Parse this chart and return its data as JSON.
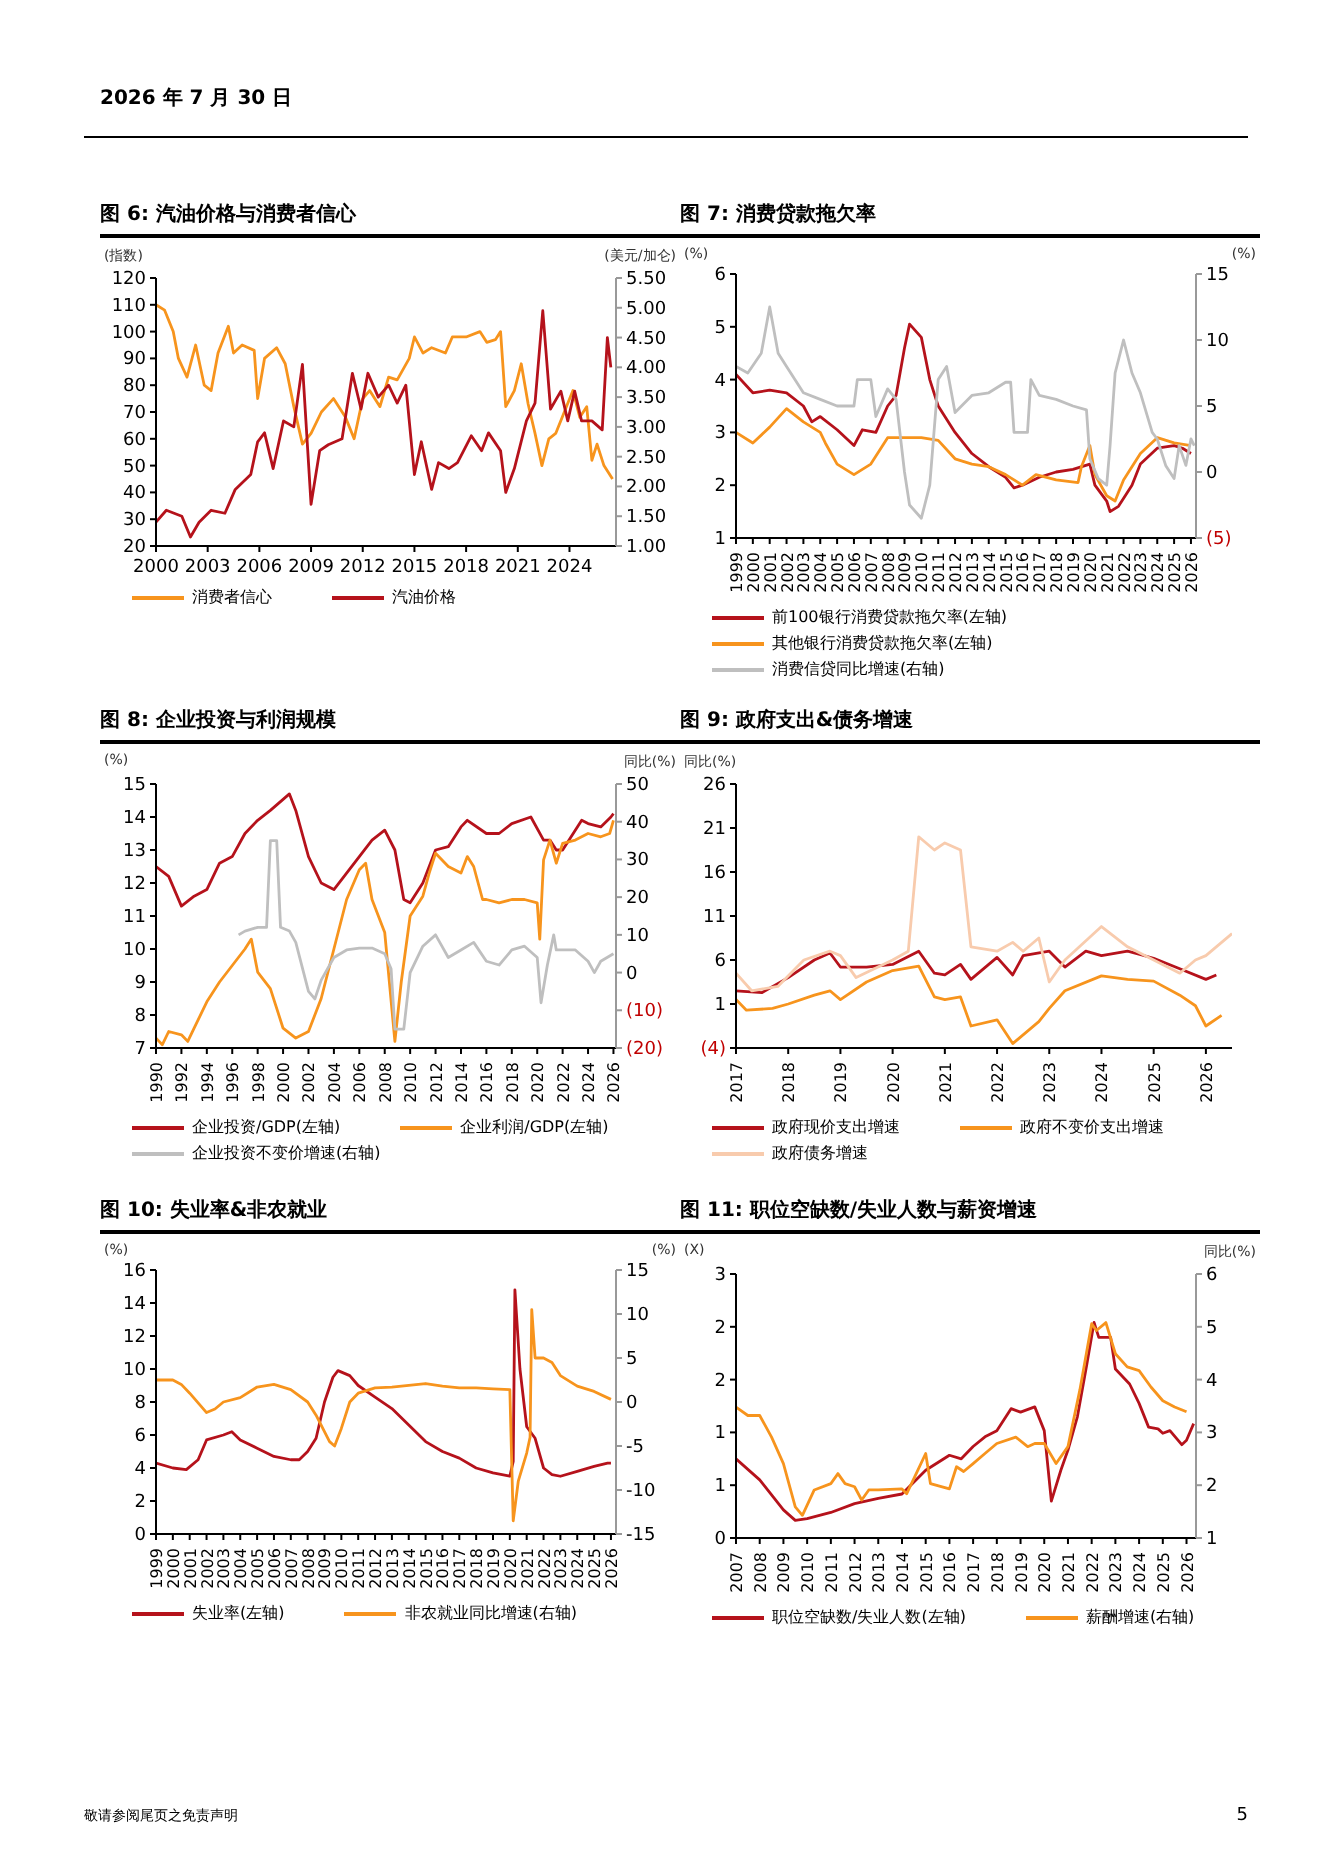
{
  "chart_data": [
    {
      "type": "line",
      "title": "图 6: 汽油价格与消费者信心",
      "ylabel": "(指数)",
      "y2label": "(美元/加仑)",
      "annotations": [
        "2026 年 7 月 30 日"
      ],
      "legend": "bottom",
      "xlim": [
        2000,
        2026.7
      ],
      "xticks": [
        2000,
        2003,
        2006,
        2009,
        2012,
        2015,
        2018,
        2021,
        2024
      ],
      "ylim": [
        20,
        120
      ],
      "yticks": [
        20,
        30,
        40,
        50,
        60,
        70,
        80,
        90,
        100,
        110,
        120
      ],
      "y2lim": [
        1,
        5.5
      ],
      "y2ticks": [
        {
          "value": 1,
          "label": "1.00"
        },
        {
          "value": 1.5,
          "label": "1.50"
        },
        {
          "value": 2,
          "label": "2.00"
        },
        {
          "value": 2.5,
          "label": "2.50"
        },
        {
          "value": 3,
          "label": "3.00"
        },
        {
          "value": 3.5,
          "label": "3.50"
        },
        {
          "value": 4,
          "label": "4.00"
        },
        {
          "value": 4.5,
          "label": "4.50"
        },
        {
          "value": 5,
          "label": "5.00"
        },
        {
          "value": 5.5,
          "label": "5.50"
        }
      ],
      "series": [
        {
          "name": "消费者信心",
          "color": "#f7941d",
          "x": [
            2000,
            2000.5,
            2001,
            2001.3,
            2001.8,
            2002.3,
            2002.8,
            2003.2,
            2003.6,
            2004.2,
            2004.5,
            2005,
            2005.7,
            2005.9,
            2006.3,
            2007,
            2007.5,
            2008,
            2008.5,
            2009,
            2009.6,
            2010.3,
            2011,
            2011.5,
            2012,
            2012.4,
            2013,
            2013.5,
            2014,
            2014.7,
            2015,
            2015.5,
            2016,
            2016.8,
            2017.2,
            2018,
            2018.8,
            2019.2,
            2019.7,
            2020,
            2020.3,
            2020.8,
            2021.2,
            2021.6,
            2022,
            2022.4,
            2022.8,
            2023.2,
            2023.7,
            2024.2,
            2024.6,
            2025,
            2025.3,
            2025.6,
            2026,
            2026.5
          ],
          "values": [
            110,
            108,
            100,
            90,
            83,
            95,
            80,
            78,
            92,
            102,
            92,
            95,
            93,
            75,
            90,
            94,
            88,
            72,
            58,
            62,
            70,
            75,
            68,
            60,
            75,
            78,
            72,
            83,
            82,
            90,
            98,
            92,
            94,
            92,
            98,
            98,
            100,
            96,
            97,
            100,
            72,
            78,
            88,
            73,
            62,
            50,
            60,
            62,
            70,
            78,
            68,
            72,
            52,
            58,
            50,
            45
          ]
        },
        {
          "name": "汽油价格",
          "color": "#b5121b",
          "axis": "y2",
          "x": [
            2000,
            2000.6,
            2001.5,
            2002,
            2002.5,
            2003.2,
            2004,
            2004.6,
            2005.5,
            2005.9,
            2006.3,
            2006.8,
            2007.4,
            2008,
            2008.5,
            2009,
            2009.5,
            2010,
            2010.8,
            2011.4,
            2011.9,
            2012.3,
            2012.9,
            2013.5,
            2014,
            2014.5,
            2015,
            2015.4,
            2016,
            2016.4,
            2017,
            2017.5,
            2018.3,
            2018.9,
            2019.3,
            2020,
            2020.3,
            2020.8,
            2021.5,
            2022,
            2022.45,
            2022.9,
            2023.5,
            2023.9,
            2024.3,
            2024.7,
            2025.3,
            2025.9,
            2026.2,
            2026.4
          ],
          "values": [
            1.4,
            1.6,
            1.5,
            1.15,
            1.4,
            1.6,
            1.55,
            1.95,
            2.2,
            2.75,
            2.9,
            2.3,
            3.1,
            3.0,
            4.05,
            1.7,
            2.6,
            2.7,
            2.8,
            3.9,
            3.3,
            3.9,
            3.5,
            3.7,
            3.4,
            3.7,
            2.2,
            2.75,
            1.95,
            2.4,
            2.3,
            2.4,
            2.85,
            2.6,
            2.9,
            2.6,
            1.9,
            2.3,
            3.1,
            3.4,
            4.95,
            3.3,
            3.6,
            3.1,
            3.6,
            3.1,
            3.1,
            2.95,
            4.5,
            4.0
          ]
        }
      ]
    },
    {
      "type": "line",
      "title": "图 7: 消费贷款拖欠率",
      "ylabel": "(%)",
      "y2label": "(%)",
      "legend": "bottom",
      "xlim": [
        1999,
        2026.3
      ],
      "xticks": [
        1999,
        2000,
        2001,
        2002,
        2003,
        2004,
        2005,
        2006,
        2007,
        2008,
        2009,
        2010,
        2011,
        2012,
        2013,
        2014,
        2015,
        2016,
        2017,
        2018,
        2019,
        2020,
        2021,
        2022,
        2023,
        2024,
        2025,
        2026
      ],
      "ylim": [
        1,
        6
      ],
      "yticks": [
        1,
        2,
        3,
        4,
        5,
        6
      ],
      "y2lim": [
        -5,
        15
      ],
      "y2ticks": [
        {
          "value": -5,
          "label": "(5)"
        },
        0,
        5,
        10,
        15
      ],
      "series": [
        {
          "name": "前100银行消费贷款拖欠率(左轴)",
          "color": "#b5121b",
          "x": [
            1999,
            2000,
            2001,
            2002,
            2003,
            2003.5,
            2004,
            2005,
            2006,
            2006.5,
            2007.3,
            2008,
            2008.5,
            2009,
            2009.3,
            2010,
            2010.5,
            2011,
            2012,
            2013,
            2014,
            2015,
            2015.5,
            2016,
            2017,
            2018,
            2019,
            2020,
            2020.3,
            2021,
            2021.2,
            2021.7,
            2022.5,
            2023,
            2024,
            2025,
            2025.5,
            2026
          ],
          "values": [
            4.1,
            3.75,
            3.8,
            3.75,
            3.5,
            3.2,
            3.3,
            3.05,
            2.75,
            3.05,
            3.0,
            3.5,
            3.7,
            4.6,
            5.05,
            4.8,
            4.0,
            3.5,
            3.0,
            2.6,
            2.35,
            2.15,
            1.95,
            2.0,
            2.15,
            2.25,
            2.3,
            2.4,
            2.0,
            1.7,
            1.5,
            1.6,
            2.0,
            2.4,
            2.7,
            2.75,
            2.7,
            2.6
          ]
        },
        {
          "name": "其他银行消费贷款拖欠率(左轴)",
          "color": "#f7941d",
          "x": [
            1999,
            2000,
            2001,
            2002,
            2003,
            2004,
            2004.3,
            2005,
            2006,
            2007,
            2008,
            2009,
            2010,
            2011,
            2012,
            2013,
            2014,
            2015,
            2016,
            2016.8,
            2018,
            2019.3,
            2019.5,
            2020,
            2020.3,
            2021,
            2021.5,
            2022,
            2023,
            2024,
            2025,
            2026
          ],
          "values": [
            3.0,
            2.8,
            3.1,
            3.45,
            3.2,
            3.0,
            2.8,
            2.4,
            2.2,
            2.4,
            2.9,
            2.9,
            2.9,
            2.85,
            2.5,
            2.4,
            2.35,
            2.2,
            2.0,
            2.2,
            2.1,
            2.05,
            2.35,
            2.75,
            2.2,
            1.8,
            1.7,
            2.1,
            2.6,
            2.9,
            2.8,
            2.75
          ]
        },
        {
          "name": "消费信贷同比增速(右轴)",
          "color": "#bfbfbf",
          "axis": "y2",
          "x": [
            1999,
            1999.7,
            2000.5,
            2001,
            2001.5,
            2002,
            2003,
            2004,
            2005,
            2006,
            2006.2,
            2007,
            2007.3,
            2008,
            2008.5,
            2009,
            2009.3,
            2010,
            2010.5,
            2011,
            2011.5,
            2012,
            2013,
            2014,
            2015,
            2015.3,
            2015.5,
            2016.3,
            2016.5,
            2017,
            2018,
            2019,
            2019.8,
            2020,
            2020.5,
            2021,
            2021.2,
            2021.5,
            2022,
            2022.5,
            2023,
            2023.7,
            2024,
            2024.5,
            2025,
            2025.3,
            2025.7,
            2026,
            2026.2
          ],
          "values": [
            8,
            7.5,
            9,
            12.5,
            9,
            8,
            6,
            5.5,
            5,
            5,
            7,
            7,
            4.2,
            6.3,
            5.5,
            0,
            -2.5,
            -3.5,
            -1,
            7,
            8,
            4.5,
            5.8,
            6,
            6.8,
            6.8,
            3,
            3,
            7,
            5.8,
            5.5,
            5,
            4.7,
            1,
            -0.5,
            -1,
            2,
            7.5,
            10,
            7.5,
            6,
            3,
            2.5,
            0.5,
            -0.5,
            2,
            0.5,
            2.5,
            2.0
          ]
        }
      ]
    },
    {
      "type": "line",
      "title": "图 8: 企业投资与利润规模",
      "ylabel": "(%)",
      "y2label": "同比(%)",
      "legend": "bottom",
      "xlim": [
        1990,
        2026.2
      ],
      "xticks": [
        1990,
        1992,
        1994,
        1996,
        1998,
        2000,
        2002,
        2004,
        2006,
        2008,
        2010,
        2012,
        2014,
        2016,
        2018,
        2020,
        2022,
        2024,
        2026
      ],
      "ylim": [
        7,
        15
      ],
      "yticks": [
        7,
        8,
        9,
        10,
        11,
        12,
        13,
        14,
        15
      ],
      "y2lim": [
        -20,
        50
      ],
      "y2ticks": [
        {
          "value": -20,
          "label": "(20)"
        },
        {
          "value": -10,
          "label": "(10)"
        },
        0,
        10,
        20,
        30,
        40,
        50
      ],
      "series": [
        {
          "name": "企业投资/GDP(左轴)",
          "color": "#b5121b",
          "x": [
            1990,
            1991,
            1992,
            1993,
            1994,
            1995,
            1996,
            1997,
            1998,
            1999,
            2000.5,
            2001,
            2002,
            2003,
            2004,
            2005,
            2006,
            2007,
            2008,
            2008.8,
            2009.5,
            2010,
            2011,
            2012,
            2013,
            2014,
            2014.5,
            2016,
            2017,
            2018,
            2019.5,
            2020.5,
            2021,
            2021.5,
            2022,
            2023.5,
            2024,
            2025,
            2025.8,
            2026
          ],
          "values": [
            12.5,
            12.2,
            11.3,
            11.6,
            11.8,
            12.6,
            12.8,
            13.5,
            13.9,
            14.2,
            14.7,
            14.2,
            12.8,
            12.0,
            11.8,
            12.3,
            12.8,
            13.3,
            13.6,
            13.0,
            11.5,
            11.4,
            12.0,
            13.0,
            13.1,
            13.7,
            13.9,
            13.5,
            13.5,
            13.8,
            14.0,
            13.3,
            13.3,
            13.0,
            13.0,
            13.9,
            13.8,
            13.7,
            14.0,
            14.1
          ]
        },
        {
          "name": "企业利润/GDP(左轴)",
          "color": "#f7941d",
          "x": [
            1990,
            1990.5,
            1991,
            1992,
            1992.5,
            1993,
            1994,
            1995,
            1996,
            1997,
            1997.5,
            1998,
            1999,
            2000,
            2001,
            2002,
            2003,
            2004,
            2005,
            2006,
            2006.5,
            2007,
            2008,
            2008.8,
            2009.3,
            2010,
            2011,
            2011.5,
            2012,
            2013,
            2014,
            2014.5,
            2015,
            2015.7,
            2016,
            2017,
            2018,
            2019,
            2020,
            2020.2,
            2020.5,
            2021,
            2021.5,
            2022,
            2023,
            2024,
            2025,
            2025.7,
            2026
          ],
          "values": [
            7.3,
            7.1,
            7.5,
            7.4,
            7.2,
            7.6,
            8.4,
            9.0,
            9.5,
            10.0,
            10.3,
            9.3,
            8.8,
            7.6,
            7.3,
            7.5,
            8.5,
            10.0,
            11.5,
            12.4,
            12.6,
            11.5,
            10.5,
            7.2,
            9.0,
            11.0,
            11.6,
            12.3,
            12.9,
            12.5,
            12.3,
            12.8,
            12.5,
            11.5,
            11.5,
            11.4,
            11.5,
            11.5,
            11.4,
            10.3,
            12.7,
            13.3,
            12.6,
            13.2,
            13.3,
            13.5,
            13.4,
            13.5,
            13.9
          ]
        },
        {
          "name": "企业投资不变价增速(右轴)",
          "color": "#bfbfbf",
          "axis": "y2",
          "x": [
            1996.5,
            1997,
            1998,
            1998.7,
            1999,
            1999.5,
            1999.8,
            2000.5,
            2001,
            2002,
            2002.5,
            2003,
            2004,
            2005,
            2006,
            2007,
            2008,
            2008.5,
            2008.8,
            2009.5,
            2010,
            2011,
            2012,
            2012.5,
            2013,
            2014,
            2015,
            2016,
            2017,
            2018,
            2019,
            2020,
            2020.3,
            2020.8,
            2021.3,
            2021.5,
            2022,
            2023,
            2024,
            2024.5,
            2025,
            2026
          ],
          "values": [
            10,
            11,
            12,
            12,
            35,
            35,
            12,
            11,
            8,
            -5,
            -7,
            -2,
            4,
            6,
            6.5,
            6.5,
            5,
            1,
            -15,
            -15,
            0,
            7,
            10,
            7,
            4,
            6,
            8,
            3,
            2,
            6,
            7,
            4,
            -8,
            2,
            10,
            6,
            6,
            6,
            3,
            0,
            3,
            5
          ]
        }
      ]
    },
    {
      "type": "line",
      "title": "图 9: 政府支出&债务增速",
      "ylabel": "同比(%)",
      "legend": "bottom",
      "xlim": [
        2017,
        2026.5
      ],
      "xticks": [
        2017,
        2018,
        2019,
        2020,
        2021,
        2022,
        2023,
        2024,
        2025,
        2026
      ],
      "ylim": [
        -4,
        26
      ],
      "yticks": [
        {
          "value": -4,
          "label": "(4)"
        },
        1,
        6,
        11,
        16,
        21,
        26
      ],
      "series": [
        {
          "name": "政府现价支出增速",
          "color": "#b5121b",
          "x": [
            2017,
            2017.5,
            2018,
            2018.5,
            2018.8,
            2019,
            2019.5,
            2020,
            2020.5,
            2020.8,
            2021,
            2021.3,
            2021.5,
            2022,
            2022.3,
            2022.5,
            2023,
            2023.3,
            2023.7,
            2024,
            2024.5,
            2025,
            2025.5,
            2026,
            2026.2
          ],
          "values": [
            2.5,
            2.3,
            4,
            6,
            6.8,
            5.2,
            5.2,
            5.5,
            7,
            4.5,
            4.3,
            5.5,
            3.8,
            6.3,
            4.3,
            6.5,
            7,
            5.2,
            7,
            6.5,
            7,
            6.2,
            5,
            3.8,
            4.3
          ]
        },
        {
          "name": "政府不变价支出增速",
          "color": "#f7941d",
          "x": [
            2017,
            2017.2,
            2017.7,
            2018,
            2018.5,
            2018.8,
            2019,
            2019.5,
            2020,
            2020.5,
            2020.8,
            2021,
            2021.3,
            2021.5,
            2022,
            2022.3,
            2022.8,
            2023,
            2023.3,
            2024,
            2024.5,
            2025,
            2025.5,
            2025.8,
            2026,
            2026.3
          ],
          "values": [
            1.5,
            0.3,
            0.5,
            1,
            2,
            2.5,
            1.5,
            3.5,
            4.8,
            5.3,
            1.8,
            1.5,
            1.8,
            -1.5,
            -0.8,
            -3.5,
            -1,
            0.5,
            2.5,
            4.2,
            3.8,
            3.6,
            2.0,
            0.8,
            -1.5,
            -0.3
          ]
        },
        {
          "name": "政府债务增速",
          "color": "#f8cbad",
          "x": [
            2017,
            2017.3,
            2017.8,
            2018.3,
            2018.8,
            2019,
            2019.3,
            2020,
            2020.3,
            2020.5,
            2020.8,
            2021,
            2021.3,
            2021.5,
            2022,
            2022.3,
            2022.5,
            2022.8,
            2023,
            2023.3,
            2024,
            2024.5,
            2025,
            2025.5,
            2025.8,
            2026,
            2026.5
          ],
          "values": [
            4.5,
            2.5,
            3,
            6,
            7,
            6.5,
            4,
            6,
            7,
            20,
            18.5,
            19.3,
            18.5,
            7.5,
            7,
            8,
            7,
            8.5,
            3.5,
            6,
            9.8,
            7.5,
            6,
            4.5,
            6,
            6.5,
            9
          ]
        }
      ]
    },
    {
      "type": "line",
      "title": "图 10: 失业率&非农就业",
      "ylabel": "(%)",
      "y2label": "(%)",
      "legend": "bottom",
      "xlim": [
        1999,
        2026.3
      ],
      "xticks": [
        1999,
        2000,
        2001,
        2002,
        2003,
        2004,
        2005,
        2006,
        2007,
        2008,
        2009,
        2010,
        2011,
        2012,
        2013,
        2014,
        2015,
        2016,
        2017,
        2018,
        2019,
        2020,
        2021,
        2022,
        2023,
        2024,
        2025,
        2026
      ],
      "ylim": [
        0,
        16
      ],
      "yticks": [
        0,
        2,
        4,
        6,
        8,
        10,
        12,
        14,
        16
      ],
      "y2lim": [
        -15,
        15
      ],
      "y2ticks": [
        -15,
        -10,
        -5,
        0,
        5,
        10,
        15
      ],
      "series": [
        {
          "name": "失业率(左轴)",
          "color": "#b5121b",
          "x": [
            1999,
            2000,
            2000.8,
            2001.5,
            2002,
            2003,
            2003.5,
            2004,
            2005,
            2006,
            2007,
            2007.5,
            2008,
            2008.5,
            2009,
            2009.5,
            2009.8,
            2010.5,
            2011,
            2012,
            2013,
            2014,
            2015,
            2016,
            2017,
            2018,
            2019,
            2020,
            2020.2,
            2020.3,
            2020.6,
            2021,
            2021.5,
            2022,
            2022.5,
            2023,
            2024,
            2025,
            2025.8,
            2026
          ],
          "values": [
            4.3,
            4.0,
            3.9,
            4.5,
            5.7,
            6.0,
            6.2,
            5.7,
            5.2,
            4.7,
            4.5,
            4.5,
            5.0,
            5.8,
            8.0,
            9.5,
            9.9,
            9.6,
            9.0,
            8.3,
            7.6,
            6.6,
            5.6,
            5.0,
            4.6,
            4.0,
            3.7,
            3.5,
            4.4,
            14.8,
            10,
            6.5,
            5.8,
            4.0,
            3.6,
            3.5,
            3.8,
            4.1,
            4.3,
            4.3
          ]
        },
        {
          "name": "非农就业同比增速(右轴)",
          "color": "#f7941d",
          "axis": "y2",
          "x": [
            1999,
            2000,
            2000.5,
            2001,
            2002,
            2002.5,
            2003,
            2004,
            2005,
            2006,
            2007,
            2008,
            2008.5,
            2009.3,
            2009.6,
            2010,
            2010.5,
            2011,
            2012,
            2013,
            2014,
            2015,
            2016,
            2017,
            2018,
            2019,
            2020,
            2020.2,
            2020.5,
            2021,
            2021.2,
            2021.3,
            2021.5,
            2022,
            2022.5,
            2023,
            2024,
            2025,
            2026
          ],
          "values": [
            2.5,
            2.5,
            2.0,
            1,
            -1.2,
            -0.8,
            0,
            0.5,
            1.7,
            2,
            1.4,
            0,
            -1.5,
            -4.5,
            -5,
            -3,
            0,
            1.0,
            1.6,
            1.7,
            1.9,
            2.1,
            1.8,
            1.6,
            1.6,
            1.5,
            1.4,
            -13.5,
            -9,
            -5.8,
            -4,
            10.5,
            5,
            5,
            4.5,
            3,
            1.8,
            1.2,
            0.3
          ]
        }
      ]
    },
    {
      "type": "line",
      "title": "图 11: 职位空缺数/失业人数与薪资增速",
      "ylabel": "(X)",
      "y2label": "同比(%)",
      "annotations": [
        "敬请参阅尾页之免责声明",
        "5"
      ],
      "legend": "bottom",
      "xlim": [
        2007,
        2026.4
      ],
      "xticks": [
        2007,
        2008,
        2009,
        2010,
        2011,
        2012,
        2013,
        2014,
        2015,
        2016,
        2017,
        2018,
        2019,
        2020,
        2021,
        2022,
        2023,
        2024,
        2025,
        2026
      ],
      "ylim": [
        0,
        3
      ],
      "yticks": [
        0,
        {
          "value": 0.6,
          "label": "1"
        },
        {
          "value": 1.2,
          "label": "1"
        },
        {
          "value": 1.8,
          "label": "2"
        },
        {
          "value": 2.4,
          "label": "2"
        },
        3
      ],
      "y2lim": [
        1,
        6
      ],
      "y2ticks": [
        1,
        2,
        3,
        4,
        5,
        6
      ],
      "series": [
        {
          "name": "职位空缺数/失业人数(左轴)",
          "color": "#b5121b",
          "x": [
            2007,
            2008,
            2009,
            2009.5,
            2010,
            2011,
            2012,
            2013,
            2014,
            2015,
            2016,
            2016.5,
            2017,
            2017.5,
            2018,
            2018.6,
            2019,
            2019.6,
            2020,
            2020.3,
            2020.7,
            2021,
            2021.4,
            2021.8,
            2022.1,
            2022.3,
            2022.8,
            2023,
            2023.6,
            2024,
            2024.4,
            2024.8,
            2025,
            2025.3,
            2025.8,
            2026,
            2026.3
          ],
          "values": [
            0.9,
            0.66,
            0.32,
            0.2,
            0.22,
            0.29,
            0.39,
            0.45,
            0.5,
            0.77,
            0.94,
            0.9,
            1.04,
            1.15,
            1.22,
            1.47,
            1.43,
            1.49,
            1.22,
            0.42,
            0.77,
            1.0,
            1.38,
            1.98,
            2.45,
            2.28,
            2.28,
            1.92,
            1.75,
            1.53,
            1.26,
            1.24,
            1.19,
            1.22,
            1.06,
            1.11,
            1.3
          ]
        },
        {
          "name": "薪酬增速(右轴)",
          "color": "#f7941d",
          "axis": "y2",
          "x": [
            2007,
            2007.5,
            2008,
            2008.5,
            2009,
            2009.5,
            2009.8,
            2010.3,
            2011,
            2011.3,
            2011.6,
            2012,
            2012.3,
            2012.6,
            2013,
            2014,
            2014.2,
            2014.6,
            2015,
            2015.2,
            2016,
            2016.3,
            2016.6,
            2017,
            2017.5,
            2018,
            2018.8,
            2019.3,
            2019.6,
            2020,
            2020.5,
            2021,
            2021.5,
            2022,
            2022.2,
            2022.6,
            2023,
            2023.5,
            2024,
            2024.5,
            2025,
            2025.5,
            2026
          ],
          "values": [
            3.48,
            3.32,
            3.32,
            2.91,
            2.41,
            1.59,
            1.43,
            1.91,
            2.03,
            2.22,
            2.03,
            1.97,
            1.72,
            1.91,
            1.91,
            1.93,
            1.84,
            2.22,
            2.6,
            2.03,
            1.93,
            2.35,
            2.26,
            2.41,
            2.6,
            2.79,
            2.91,
            2.73,
            2.79,
            2.79,
            2.41,
            2.73,
            3.8,
            5.06,
            4.93,
            5.08,
            4.49,
            4.24,
            4.17,
            3.86,
            3.6,
            3.48,
            3.39
          ]
        }
      ]
    }
  ]
}
